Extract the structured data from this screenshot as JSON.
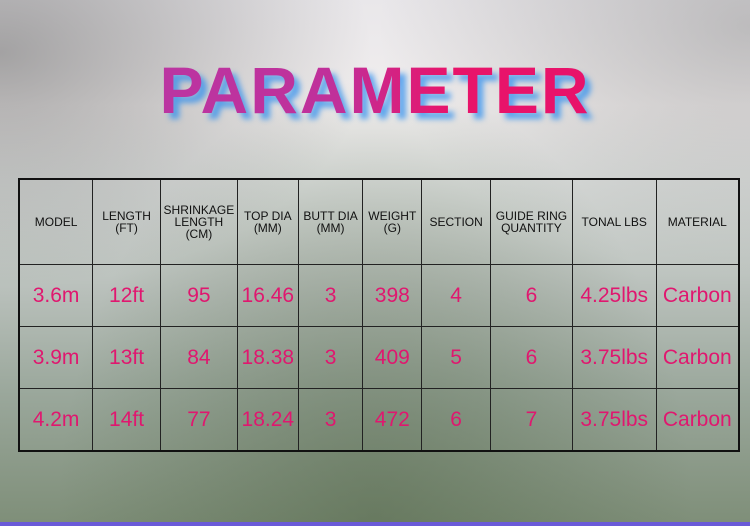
{
  "title": "PARAMETER",
  "table": {
    "headers": [
      "MODEL",
      "LENGTH\n(FT)",
      "SHRINKAGE\nLENGTH\n(CM)",
      "TOP DIA\n(MM)",
      "BUTT DIA\n(MM)",
      "WEIGHT\n(G)",
      "SECTION",
      "GUIDE RING\nQUANTITY",
      "TONAL LBS",
      "MATERIAL"
    ],
    "rows": [
      [
        "3.6m",
        "12ft",
        "95",
        "16.46",
        "3",
        "398",
        "4",
        "6",
        "4.25lbs",
        "Carbon"
      ],
      [
        "3.9m",
        "13ft",
        "84",
        "18.38",
        "3",
        "409",
        "5",
        "6",
        "3.75lbs",
        "Carbon"
      ],
      [
        "4.2m",
        "14ft",
        "77",
        "18.24",
        "3",
        "472",
        "6",
        "7",
        "3.75lbs",
        "Carbon"
      ]
    ]
  },
  "colors": {
    "value_text": "#e0176f",
    "title_start": "#b63aa8",
    "title_end": "#e8106a"
  }
}
